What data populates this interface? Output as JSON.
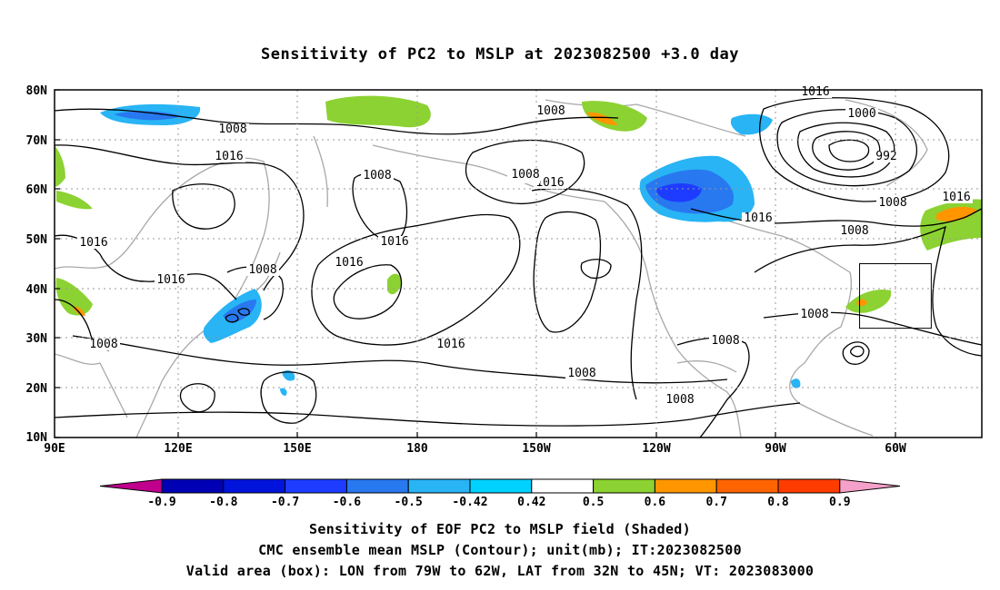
{
  "title": "Sensitivity of PC2 to MSLP at 2023082500 +3.0 day",
  "lat_labels": [
    "80N",
    "70N",
    "60N",
    "50N",
    "40N",
    "30N",
    "20N",
    "10N"
  ],
  "lon_labels": [
    "90E",
    "120E",
    "150E",
    "180",
    "150W",
    "120W",
    "90W",
    "60W"
  ],
  "contour_labels": [
    "1008",
    "1016",
    "1016",
    "1008",
    "1016",
    "1008",
    "1016",
    "1008",
    "1016",
    "1016",
    "1008",
    "1008",
    "1008",
    "1016",
    "1000",
    "992",
    "1008",
    "1016",
    "1016",
    "1008",
    "1008",
    "1008",
    "1016",
    "1016",
    "1008"
  ],
  "colorbar": {
    "labels": [
      "-0.9",
      "-0.8",
      "-0.7",
      "-0.6",
      "-0.5",
      "-0.42",
      "0.42",
      "0.5",
      "0.6",
      "0.7",
      "0.8",
      "0.9"
    ],
    "colors": [
      "#c0008c",
      "#0000b4",
      "#0014dc",
      "#1e3cff",
      "#2878f0",
      "#28b4f5",
      "#00d2ff",
      "#ffffff",
      "#8cd232",
      "#ff9600",
      "#ff6400",
      "#ff3c00",
      "#ff0000",
      "#f5a0c8"
    ]
  },
  "footer": {
    "line1": "Sensitivity of EOF PC2 to MSLP field (Shaded)",
    "line2": "CMC ensemble mean MSLP (Contour); unit(mb); IT:2023082500",
    "line3": "Valid area (box): LON from 79W to 62W, LAT from 32N to 45N; VT: 2023083000"
  },
  "valid_box": {
    "lon_min": -79,
    "lon_max": -62,
    "lat_min": 32,
    "lat_max": 45
  }
}
